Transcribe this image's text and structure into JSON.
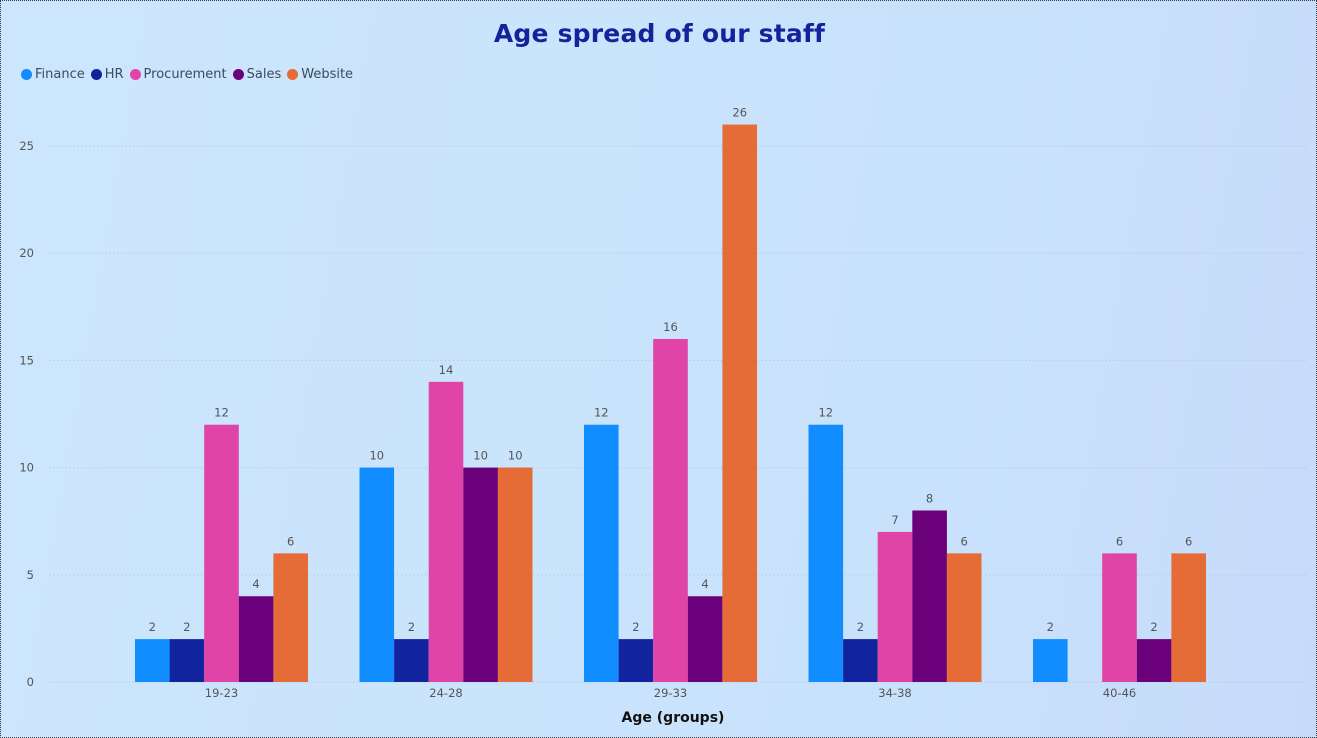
{
  "chart_data": {
    "type": "bar",
    "title": "Age spread of our staff",
    "xlabel": "Age (groups)",
    "ylabel": "",
    "ylim": [
      0,
      27
    ],
    "yticks": [
      0,
      5,
      10,
      15,
      20,
      25
    ],
    "grid": true,
    "legend_position": "top-left",
    "categories": [
      "19-23",
      "24-28",
      "29-33",
      "34-38",
      "40-46"
    ],
    "series": [
      {
        "name": "Finance",
        "color": "#118dff",
        "values": [
          2,
          10,
          12,
          12,
          2
        ]
      },
      {
        "name": "HR",
        "color": "#12239e",
        "values": [
          2,
          2,
          2,
          2,
          null
        ]
      },
      {
        "name": "Procurement",
        "color": "#e044a7",
        "values": [
          12,
          14,
          16,
          7,
          6
        ]
      },
      {
        "name": "Sales",
        "color": "#6b007b",
        "values": [
          4,
          10,
          4,
          8,
          2
        ]
      },
      {
        "name": "Website",
        "color": "#e66c37",
        "values": [
          6,
          10,
          26,
          6,
          6
        ]
      }
    ]
  }
}
